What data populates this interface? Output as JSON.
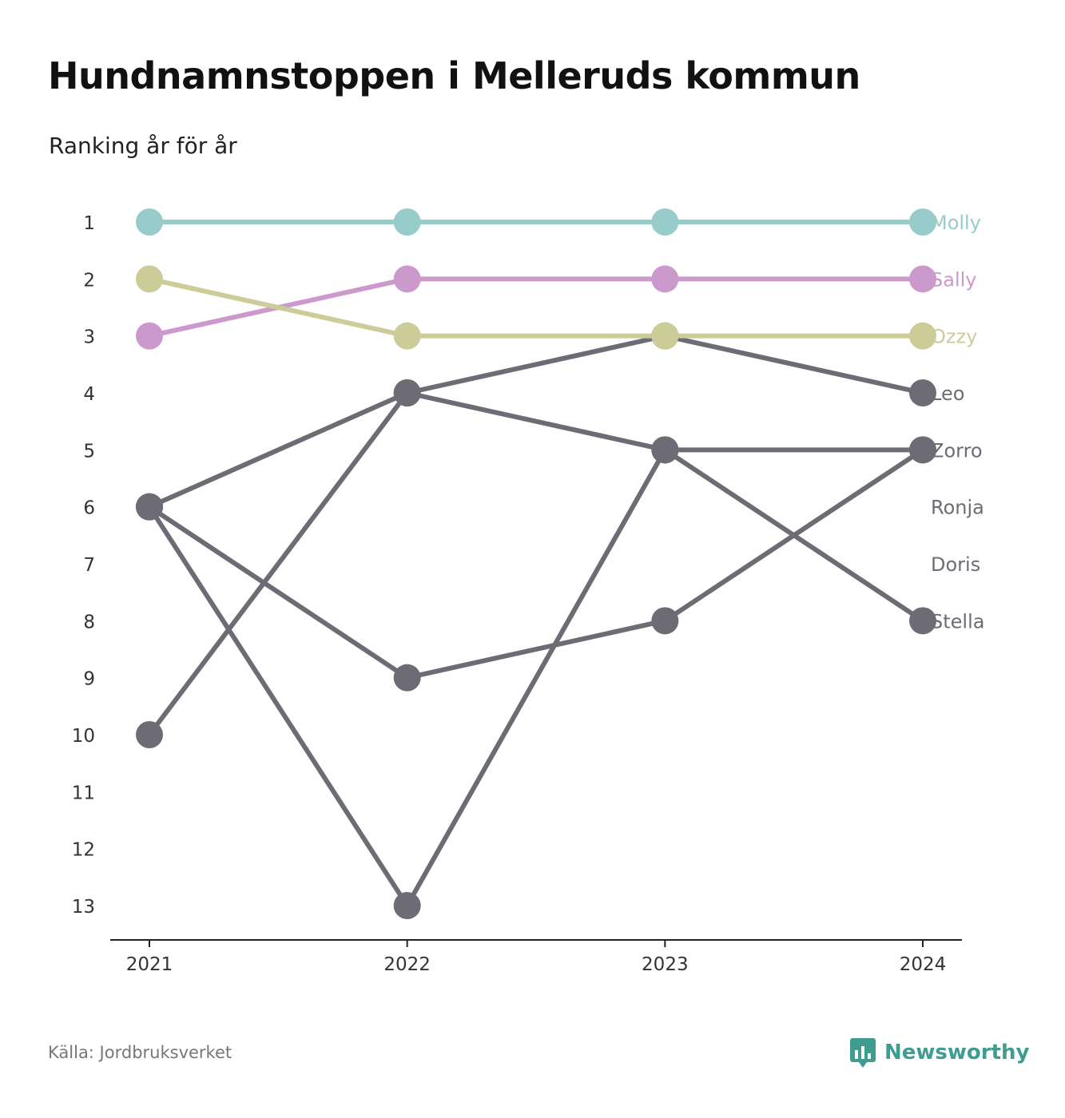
{
  "title": "Hundnamnstoppen i Melleruds kommun",
  "subtitle": "Ranking år för år",
  "source": "Källa: Jordbruksverket",
  "brand": {
    "name": "Newsworthy",
    "icon": "newsworthy-logo-icon",
    "color": "#3f9c91"
  },
  "chart_data": {
    "type": "line",
    "subtype": "bump",
    "x": [
      "2021",
      "2022",
      "2023",
      "2024"
    ],
    "y_ticks": [
      1,
      2,
      3,
      4,
      5,
      6,
      7,
      8,
      9,
      10,
      11,
      12,
      13
    ],
    "ylim": [
      1,
      13
    ],
    "y_reversed": true,
    "grid": false,
    "legend": "direct-labels-right",
    "series": [
      {
        "name": "Molly",
        "values": [
          1,
          1,
          1,
          1
        ],
        "color": "#97cccb"
      },
      {
        "name": "Sally",
        "values": [
          3,
          2,
          2,
          2
        ],
        "color": "#cc99cc"
      },
      {
        "name": "Ozzy",
        "values": [
          2,
          3,
          3,
          3
        ],
        "color": "#cccc99"
      },
      {
        "name": "Leo",
        "values": [
          6,
          4,
          3,
          4
        ],
        "color": "#6d6c74"
      },
      {
        "name": "Zorro",
        "values": [
          10,
          4,
          5,
          5
        ],
        "color": "#6d6c74"
      },
      {
        "name": "Ronja",
        "values": [
          null,
          null,
          null,
          null
        ],
        "color": "#6d6c74"
      },
      {
        "name": "Doris",
        "values": [
          null,
          null,
          null,
          null
        ],
        "color": "#6d6c74"
      },
      {
        "name": "Stella",
        "values": [
          6,
          13,
          5,
          8
        ],
        "color": "#6d6c74"
      },
      {
        "name": "",
        "values": [
          6,
          9,
          8,
          5
        ],
        "color": "#6d6c74"
      }
    ]
  }
}
